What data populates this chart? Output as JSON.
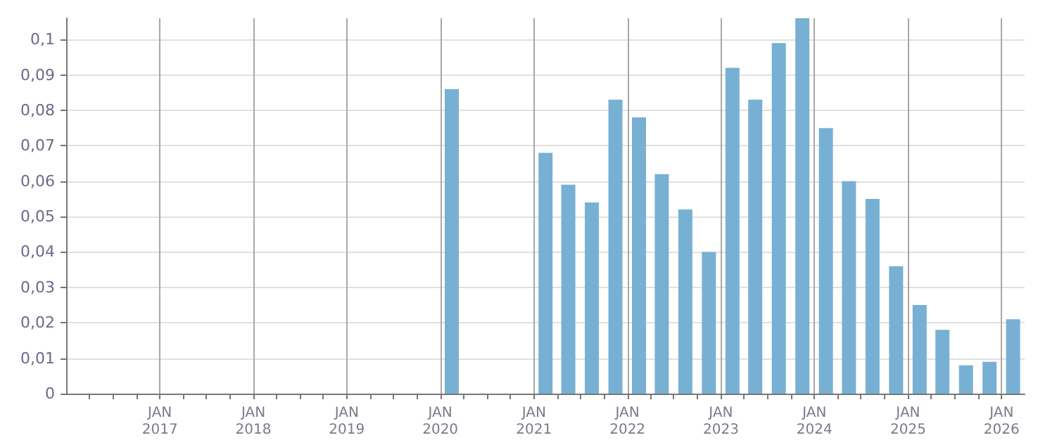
{
  "chart_data": {
    "type": "bar",
    "color": "#78b0d3",
    "grid": true,
    "x": [
      "2020-02-15",
      "2021-02-15",
      "2021-05-15",
      "2021-08-15",
      "2021-11-15",
      "2022-02-15",
      "2022-05-15",
      "2022-08-15",
      "2022-11-15",
      "2023-02-15",
      "2023-05-15",
      "2023-08-15",
      "2023-11-15",
      "2024-02-15",
      "2024-05-15",
      "2024-08-15",
      "2024-11-15",
      "2025-02-15",
      "2025-05-15",
      "2025-08-15",
      "2025-11-15",
      "2026-02-15"
    ],
    "values": [
      0.086,
      0.068,
      0.059,
      0.054,
      0.083,
      0.078,
      0.062,
      0.052,
      0.04,
      0.092,
      0.083,
      0.099,
      0.106,
      0.075,
      0.06,
      0.055,
      0.036,
      0.025,
      0.018,
      0.008,
      0.009,
      0.021
    ],
    "xlim": [
      "2016-01-01",
      "2026-04-01"
    ],
    "xticks": [
      {
        "value": "2016-04-01",
        "label": null
      },
      {
        "value": "2016-07-01",
        "label": null
      },
      {
        "value": "2016-10-01",
        "label": null
      },
      {
        "value": "2017-01-01",
        "label": "JAN\n2017"
      },
      {
        "value": "2017-04-01",
        "label": null
      },
      {
        "value": "2017-07-01",
        "label": null
      },
      {
        "value": "2017-10-01",
        "label": null
      },
      {
        "value": "2018-01-01",
        "label": "JAN\n2018"
      },
      {
        "value": "2018-04-01",
        "label": null
      },
      {
        "value": "2018-07-01",
        "label": null
      },
      {
        "value": "2018-10-01",
        "label": null
      },
      {
        "value": "2019-01-01",
        "label": "JAN\n2019"
      },
      {
        "value": "2019-04-01",
        "label": null
      },
      {
        "value": "2019-07-01",
        "label": null
      },
      {
        "value": "2019-10-01",
        "label": null
      },
      {
        "value": "2020-01-01",
        "label": "JAN\n2020"
      },
      {
        "value": "2020-04-01",
        "label": null
      },
      {
        "value": "2020-07-01",
        "label": null
      },
      {
        "value": "2020-10-01",
        "label": null
      },
      {
        "value": "2021-01-01",
        "label": "JAN\n2021"
      },
      {
        "value": "2021-04-01",
        "label": null
      },
      {
        "value": "2021-07-01",
        "label": null
      },
      {
        "value": "2021-10-01",
        "label": null
      },
      {
        "value": "2022-01-01",
        "label": "JAN\n2022"
      },
      {
        "value": "2022-04-01",
        "label": null
      },
      {
        "value": "2022-07-01",
        "label": null
      },
      {
        "value": "2022-10-01",
        "label": null
      },
      {
        "value": "2023-01-01",
        "label": "JAN\n2023"
      },
      {
        "value": "2023-04-01",
        "label": null
      },
      {
        "value": "2023-07-01",
        "label": null
      },
      {
        "value": "2023-10-01",
        "label": null
      },
      {
        "value": "2024-01-01",
        "label": "JAN\n2024"
      },
      {
        "value": "2024-04-01",
        "label": null
      },
      {
        "value": "2024-07-01",
        "label": null
      },
      {
        "value": "2024-10-01",
        "label": null
      },
      {
        "value": "2025-01-01",
        "label": "JAN\n2025"
      },
      {
        "value": "2025-04-01",
        "label": null
      },
      {
        "value": "2025-07-01",
        "label": null
      },
      {
        "value": "2025-10-01",
        "label": null
      },
      {
        "value": "2026-01-01",
        "label": "JAN\n2026"
      }
    ],
    "ylim": [
      0,
      0.106
    ],
    "yticks": [
      0,
      {
        "value": 0.01,
        "label": "0,01"
      },
      {
        "value": 0.02,
        "label": "0,02"
      },
      {
        "value": 0.03,
        "label": "0,03"
      },
      {
        "value": 0.04,
        "label": "0,04"
      },
      {
        "value": 0.05,
        "label": "0,05"
      },
      {
        "value": 0.06,
        "label": "0,06"
      },
      {
        "value": 0.07,
        "label": "0,07"
      },
      {
        "value": 0.08,
        "label": "0,08"
      },
      {
        "value": 0.09,
        "label": "0,09"
      },
      {
        "value": 0.1,
        "label": "0,1"
      }
    ]
  }
}
